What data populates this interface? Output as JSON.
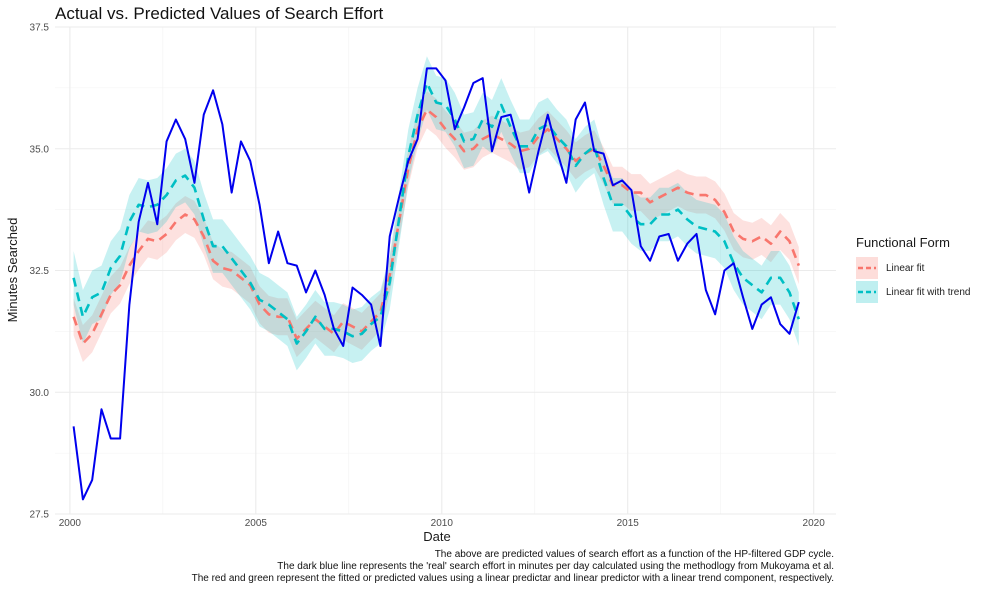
{
  "chart_data": {
    "type": "line",
    "title": "Actual vs. Predicted Values of Search Effort",
    "xlabel": "Date",
    "ylabel": "Minutes Searched",
    "xlim": [
      1999.6,
      2020.6
    ],
    "ylim": [
      27.5,
      37.5
    ],
    "x_ticks": [
      2000,
      2005,
      2010,
      2015,
      2020
    ],
    "x_tick_labels": [
      "2000",
      "2005",
      "2010",
      "2015",
      "2020"
    ],
    "y_ticks": [
      27.5,
      30.0,
      32.5,
      35.0,
      37.5
    ],
    "y_tick_labels": [
      "27.5",
      "30.0",
      "32.5",
      "35.0",
      "37.5"
    ],
    "grid": true,
    "legend": {
      "title": "Functional Form",
      "position": "right",
      "entries": [
        "Linear fit",
        "Linear fit with trend"
      ]
    },
    "actual": {
      "color": "#0000ee",
      "x": [
        2000.1,
        2000.35,
        2000.6,
        2000.85,
        2001.1,
        2001.35,
        2001.6,
        2001.85,
        2002.1,
        2002.35,
        2002.6,
        2002.85,
        2003.1,
        2003.35,
        2003.6,
        2003.85,
        2004.1,
        2004.35,
        2004.6,
        2004.85,
        2005.1,
        2005.35,
        2005.6,
        2005.85,
        2006.1,
        2006.35,
        2006.6,
        2006.85,
        2007.1,
        2007.35,
        2007.6,
        2007.85,
        2008.1,
        2008.35,
        2008.6,
        2008.85,
        2009.1,
        2009.35,
        2009.6,
        2009.85,
        2010.1,
        2010.35,
        2010.6,
        2010.85,
        2011.1,
        2011.35,
        2011.6,
        2011.85,
        2012.1,
        2012.35,
        2012.6,
        2012.85,
        2013.1,
        2013.35,
        2013.6,
        2013.85,
        2014.1,
        2014.35,
        2014.6,
        2014.85,
        2015.1,
        2015.35,
        2015.6,
        2015.85,
        2016.1,
        2016.35,
        2016.6,
        2016.85,
        2017.1,
        2017.35,
        2017.6,
        2017.85,
        2018.1,
        2018.35,
        2018.6,
        2018.85,
        2019.1,
        2019.35,
        2019.6
      ],
      "y": [
        29.3,
        27.8,
        28.2,
        29.65,
        29.05,
        29.05,
        31.8,
        33.5,
        34.3,
        33.45,
        35.15,
        35.6,
        35.2,
        34.3,
        35.7,
        36.2,
        35.5,
        34.1,
        35.15,
        34.75,
        33.85,
        32.65,
        33.3,
        32.65,
        32.6,
        32.05,
        32.5,
        32.0,
        31.3,
        30.95,
        32.15,
        32.0,
        31.8,
        30.95,
        33.2,
        34.0,
        34.75,
        35.2,
        36.65,
        36.65,
        36.4,
        35.4,
        35.85,
        36.35,
        36.45,
        34.95,
        35.65,
        35.7,
        35.0,
        34.1,
        34.95,
        35.7,
        34.95,
        34.3,
        35.6,
        35.95,
        34.95,
        34.9,
        34.25,
        34.35,
        34.15,
        33.0,
        32.7,
        33.2,
        33.25,
        32.7,
        33.05,
        33.25,
        32.1,
        31.6,
        32.5,
        32.65,
        31.95,
        31.3,
        31.8,
        31.95,
        31.4,
        31.2,
        31.85
      ]
    },
    "series": [
      {
        "name": "Linear fit",
        "color": "#f8766d",
        "x": [
          2000.1,
          2000.35,
          2000.6,
          2000.85,
          2001.1,
          2001.35,
          2001.6,
          2001.85,
          2002.1,
          2002.35,
          2002.6,
          2002.85,
          2003.1,
          2003.35,
          2003.6,
          2003.85,
          2004.1,
          2004.35,
          2004.6,
          2004.85,
          2005.1,
          2005.35,
          2005.6,
          2005.85,
          2006.1,
          2006.35,
          2006.6,
          2006.85,
          2007.1,
          2007.35,
          2007.6,
          2007.85,
          2008.1,
          2008.35,
          2008.6,
          2008.85,
          2009.1,
          2009.35,
          2009.6,
          2009.85,
          2010.1,
          2010.35,
          2010.6,
          2010.85,
          2011.1,
          2011.35,
          2011.6,
          2011.85,
          2012.1,
          2012.35,
          2012.6,
          2012.85,
          2013.1,
          2013.35,
          2013.6,
          2013.85,
          2014.1,
          2014.35,
          2014.6,
          2014.85,
          2015.1,
          2015.35,
          2015.6,
          2015.85,
          2016.1,
          2016.35,
          2016.6,
          2016.85,
          2017.1,
          2017.35,
          2017.6,
          2017.85,
          2018.1,
          2018.35,
          2018.6,
          2018.85,
          2019.1,
          2019.35,
          2019.6
        ],
        "y": [
          31.55,
          31.0,
          31.2,
          31.6,
          32.0,
          32.2,
          32.6,
          32.9,
          33.15,
          33.1,
          33.25,
          33.5,
          33.65,
          33.55,
          33.2,
          32.7,
          32.55,
          32.5,
          32.35,
          32.2,
          31.8,
          31.6,
          31.55,
          31.55,
          31.1,
          31.3,
          31.5,
          31.35,
          31.2,
          31.45,
          31.35,
          31.25,
          31.45,
          31.65,
          32.4,
          33.5,
          34.6,
          35.4,
          35.8,
          35.65,
          35.4,
          35.2,
          34.95,
          35.0,
          35.2,
          35.3,
          35.2,
          35.1,
          34.95,
          35.0,
          35.25,
          35.4,
          35.2,
          35.0,
          34.75,
          34.9,
          35.0,
          34.65,
          34.25,
          34.25,
          34.1,
          34.1,
          33.9,
          34.0,
          34.1,
          34.2,
          34.1,
          34.05,
          34.05,
          33.95,
          33.7,
          33.3,
          33.15,
          33.1,
          33.2,
          33.05,
          33.3,
          33.1,
          32.6
        ],
        "ci_half": 0.38
      },
      {
        "name": "Linear fit with trend",
        "color": "#00bfc4",
        "x": [
          2000.1,
          2000.35,
          2000.6,
          2000.85,
          2001.1,
          2001.35,
          2001.6,
          2001.85,
          2002.1,
          2002.35,
          2002.6,
          2002.85,
          2003.1,
          2003.35,
          2003.6,
          2003.85,
          2004.1,
          2004.35,
          2004.6,
          2004.85,
          2005.1,
          2005.35,
          2005.6,
          2005.85,
          2006.1,
          2006.35,
          2006.6,
          2006.85,
          2007.1,
          2007.35,
          2007.6,
          2007.85,
          2008.1,
          2008.35,
          2008.6,
          2008.85,
          2009.1,
          2009.35,
          2009.6,
          2009.85,
          2010.1,
          2010.35,
          2010.6,
          2010.85,
          2011.1,
          2011.35,
          2011.6,
          2011.85,
          2012.1,
          2012.35,
          2012.6,
          2012.85,
          2013.1,
          2013.35,
          2013.6,
          2013.85,
          2014.1,
          2014.35,
          2014.6,
          2014.85,
          2015.1,
          2015.35,
          2015.6,
          2015.85,
          2016.1,
          2016.35,
          2016.6,
          2016.85,
          2017.1,
          2017.35,
          2017.6,
          2017.85,
          2018.1,
          2018.35,
          2018.6,
          2018.85,
          2019.1,
          2019.35,
          2019.6
        ],
        "y": [
          32.35,
          31.55,
          31.95,
          32.05,
          32.55,
          32.8,
          33.5,
          33.85,
          33.8,
          33.85,
          34.05,
          34.35,
          34.45,
          34.2,
          33.55,
          33.0,
          33.0,
          32.75,
          32.5,
          32.25,
          31.9,
          31.8,
          31.65,
          31.5,
          31.0,
          31.25,
          31.55,
          31.3,
          31.3,
          31.25,
          31.15,
          31.2,
          31.4,
          31.55,
          32.25,
          33.55,
          34.85,
          35.7,
          36.35,
          35.95,
          35.9,
          35.6,
          35.15,
          35.2,
          35.6,
          35.45,
          35.9,
          35.45,
          35.05,
          35.05,
          35.4,
          35.5,
          35.25,
          35.05,
          34.65,
          34.9,
          35.05,
          34.4,
          33.85,
          33.85,
          33.6,
          33.45,
          33.45,
          33.65,
          33.65,
          33.75,
          33.55,
          33.4,
          33.35,
          33.3,
          33.1,
          32.65,
          32.35,
          32.2,
          32.05,
          32.35,
          32.35,
          32.05,
          31.5
        ],
        "ci_half": 0.55
      }
    ]
  },
  "caption": {
    "lines": [
      "The above are predicted values of search effort as a function of the HP-filtered GDP cycle.",
      "The dark blue line represents the 'real' search effort in minutes per day calculated using the methodlogy from Mukoyama et al.",
      "The red and green represent the fitted or predicted values using a linear predictar and linear predictor with a linear trend component, respectively."
    ]
  }
}
